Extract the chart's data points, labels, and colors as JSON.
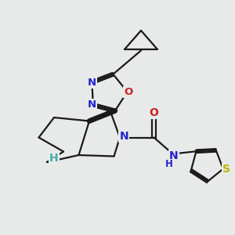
{
  "background_color": "#e8eaea",
  "bond_color": "#1a1a1a",
  "n_color": "#2222cc",
  "o_color": "#cc2222",
  "s_color": "#b8b800",
  "h_color": "#44aaaa",
  "line_width": 1.6,
  "figsize": [
    3.0,
    3.0
  ],
  "dpi": 100,
  "xlim": [
    0,
    10
  ],
  "ylim": [
    0,
    10
  ]
}
